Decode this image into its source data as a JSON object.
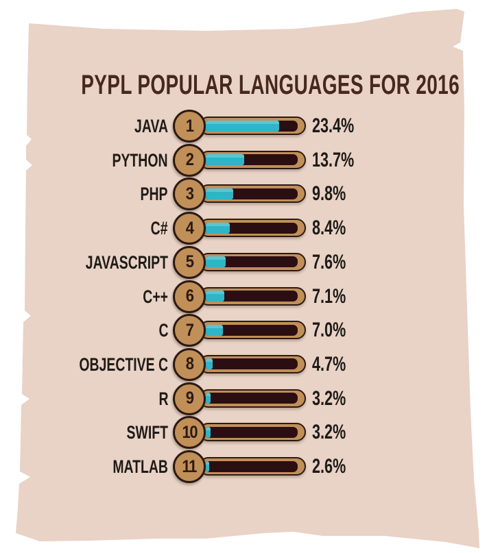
{
  "title": "PYPL POPULAR LANGUAGES FOR 2016",
  "chart_data": {
    "type": "bar",
    "orientation": "horizontal",
    "title": "PYPL POPULAR LANGUAGES FOR 2016",
    "unit": "%",
    "legend": "none",
    "categories": [
      "JAVA",
      "PYTHON",
      "PHP",
      "C#",
      "JAVASCRIPT",
      "C++",
      "C",
      "OBJECTIVE C",
      "R",
      "SWIFT",
      "MATLAB"
    ],
    "ranks": [
      1,
      2,
      3,
      4,
      5,
      6,
      7,
      8,
      9,
      10,
      11
    ],
    "values": [
      23.4,
      13.7,
      9.8,
      8.4,
      7.6,
      7.1,
      7.0,
      4.7,
      3.2,
      3.2,
      2.6
    ],
    "value_labels": [
      "23.4%",
      "13.7%",
      "9.8%",
      "8.4%",
      "7.6%",
      "7.1%",
      "7.0%",
      "4.7%",
      "3.2%",
      "3.2%",
      "2.6%"
    ],
    "bar_fill_fractions": [
      0.8,
      0.42,
      0.3,
      0.26,
      0.22,
      0.205,
      0.19,
      0.075,
      0.055,
      0.05,
      0.04
    ]
  },
  "colors": {
    "background": "#ffffff",
    "paper": "#e9d2c6",
    "title_text": "#45291b",
    "label_text": "#1e1b17",
    "tan": "#c18f58",
    "outline": "#2b1a12",
    "track": "#2b0e11",
    "teal": "#30b4c7",
    "teal_light": "#58c6d4"
  }
}
